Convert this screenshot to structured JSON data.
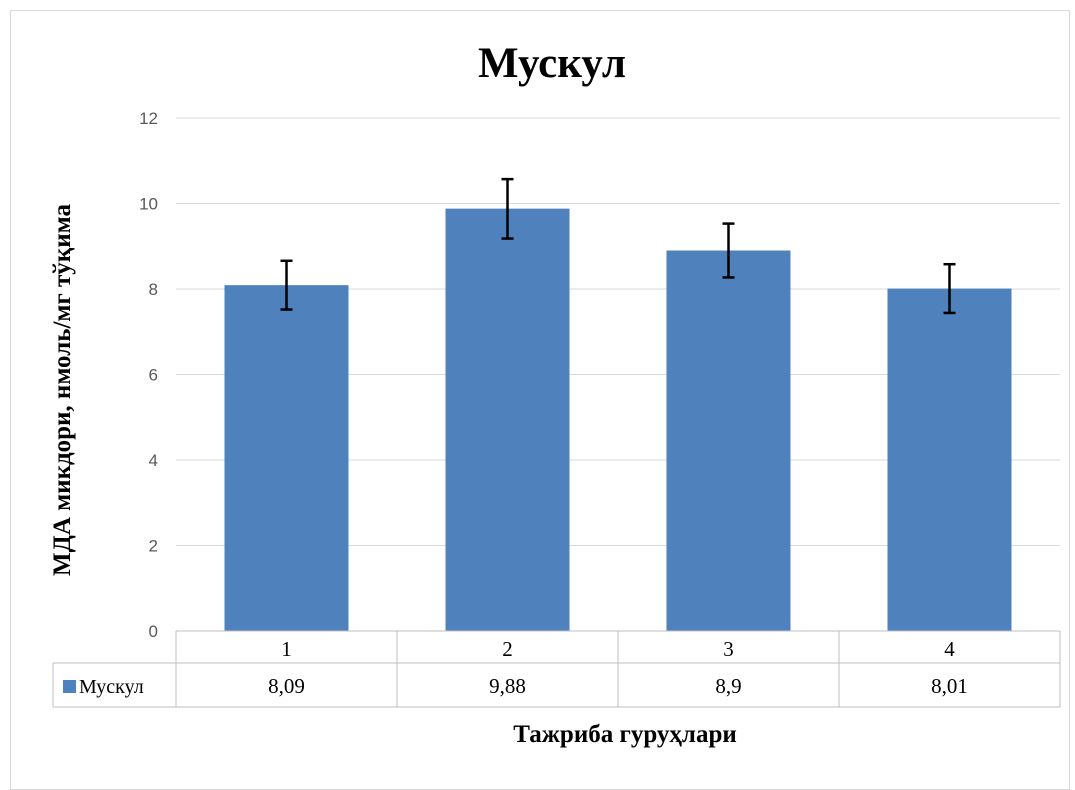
{
  "chart_data": {
    "type": "bar",
    "title": "Мускул",
    "xlabel": "Тажриба гуруҳлари",
    "ylabel": "МДА микдори, нмоль/мг тўқима",
    "categories": [
      "1",
      "2",
      "3",
      "4"
    ],
    "series": [
      {
        "name": "Мускул",
        "values": [
          8.09,
          9.88,
          8.9,
          8.01
        ],
        "value_labels": [
          "8,09",
          "9,88",
          "8,9",
          "8,01"
        ],
        "error_low": [
          7.52,
          9.18,
          8.27,
          7.44
        ],
        "error_high": [
          8.66,
          10.57,
          9.53,
          8.58
        ],
        "color": "#4f81bd"
      }
    ],
    "ylim": [
      0,
      12
    ],
    "yticks": [
      0,
      2,
      4,
      6,
      8,
      10,
      12
    ],
    "grid": true,
    "data_table": true
  }
}
